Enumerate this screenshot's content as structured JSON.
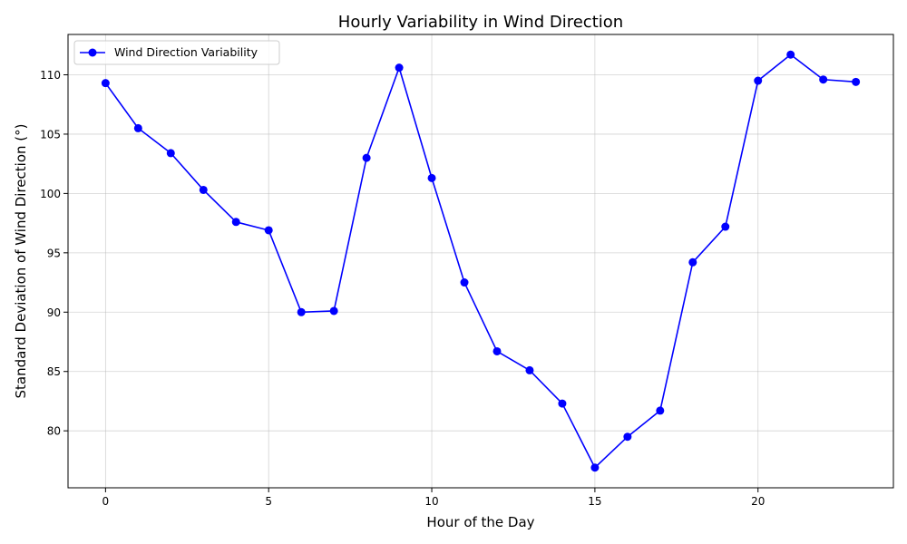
{
  "chart_data": {
    "type": "line",
    "title": "Hourly Variability in Wind Direction",
    "xlabel": "Hour of the Day",
    "ylabel": "Standard Deviation of Wind Direction (°)",
    "x": [
      0,
      1,
      2,
      3,
      4,
      5,
      6,
      7,
      8,
      9,
      10,
      11,
      12,
      13,
      14,
      15,
      16,
      17,
      18,
      19,
      20,
      21,
      22,
      23
    ],
    "series": [
      {
        "name": "Wind Direction Variability",
        "color": "#0000ff",
        "marker": "circle",
        "values": [
          109.3,
          105.5,
          103.4,
          100.3,
          97.6,
          96.9,
          90.0,
          90.1,
          103.0,
          110.6,
          101.3,
          92.5,
          86.7,
          85.1,
          82.3,
          76.9,
          79.5,
          81.7,
          94.2,
          97.2,
          109.5,
          111.7,
          109.6,
          109.4
        ]
      }
    ],
    "xlim": [
      -1.15,
      24.15
    ],
    "ylim": [
      75.2,
      113.4
    ],
    "xticks": [
      0,
      5,
      10,
      15,
      20
    ],
    "yticks": [
      80,
      85,
      90,
      95,
      100,
      105,
      110
    ],
    "grid": true,
    "legend_position": "top-left"
  }
}
